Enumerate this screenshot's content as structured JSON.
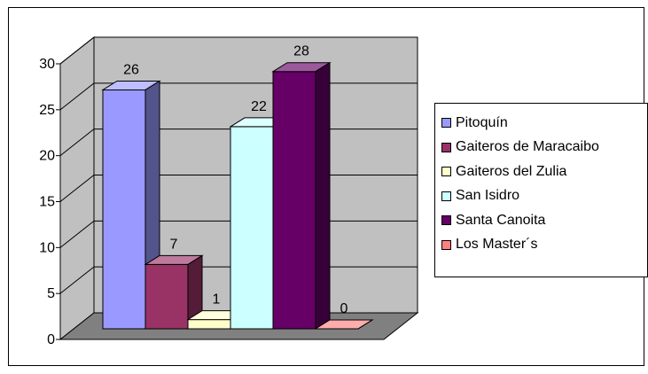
{
  "chart_data": {
    "type": "bar",
    "three_d": true,
    "series": [
      {
        "name": "Pitoquín",
        "value": 26,
        "color": "#9999FF"
      },
      {
        "name": "Gaiteros de Maracaibo",
        "value": 7,
        "color": "#993366"
      },
      {
        "name": "Gaiteros del Zulia",
        "value": 1,
        "color": "#FFFFCC"
      },
      {
        "name": "San Isidro",
        "value": 22,
        "color": "#CCFFFF"
      },
      {
        "name": "Santa Canoita",
        "value": 28,
        "color": "#660066"
      },
      {
        "name": "Los Master´s",
        "value": 0,
        "color": "#FF8080"
      }
    ],
    "y_ticks": [
      "0",
      "5",
      "10",
      "15",
      "20",
      "25",
      "30"
    ],
    "ylim": [
      0,
      30
    ],
    "grid": true,
    "legend_position": "right",
    "wall_color": "#C0C0C0",
    "floor_color": "#808080"
  }
}
